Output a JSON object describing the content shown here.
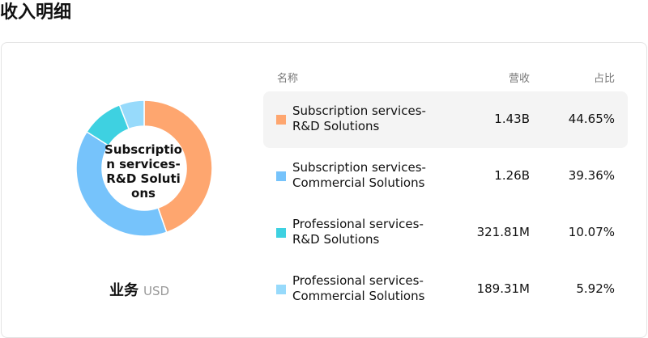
{
  "header": {
    "title": "收入明细"
  },
  "chart_data": {
    "type": "donut",
    "categories": [
      "Subscription services- R&D Solutions",
      "Subscription services- Commercial Solutions",
      "Professional services- R&D Solutions",
      "Professional services- Commercial Solutions"
    ],
    "values": [
      44.65,
      39.36,
      10.07,
      5.92
    ],
    "value_labels": [
      "44.65%",
      "39.36%",
      "10.07%",
      "5.92%"
    ],
    "colors": [
      "#fea66f",
      "#76c3fb",
      "#3ed1e1",
      "#97dafb"
    ],
    "center_label_index": 0
  },
  "footer": {
    "label": "业务",
    "unit": "USD"
  },
  "table": {
    "columns": [
      "名称",
      "营收",
      "占比"
    ],
    "revenue": [
      "1.43B",
      "1.26B",
      "321.81M",
      "189.31M"
    ],
    "highlighted_row": 0
  }
}
